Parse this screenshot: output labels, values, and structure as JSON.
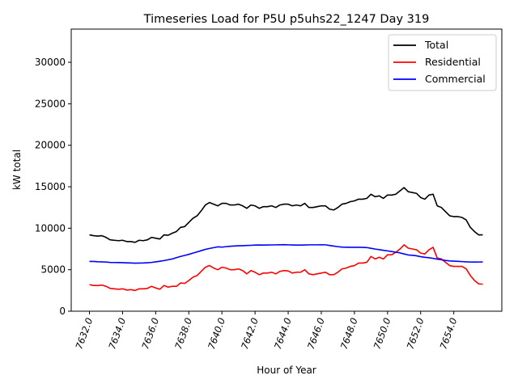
{
  "chart_data": {
    "type": "line",
    "title": "Timeseries Load for P5U p5uhs22_1247  Day 319",
    "xlabel": "Hour of Year",
    "ylabel": "kW total",
    "xlim": [
      7630.9,
      7656.9
    ],
    "ylim": [
      0,
      34000
    ],
    "xticks": [
      7632,
      7634,
      7636,
      7638,
      7640,
      7642,
      7644,
      7646,
      7648,
      7650,
      7652,
      7654
    ],
    "xtick_labels": [
      "7632.0",
      "7634.0",
      "7636.0",
      "7638.0",
      "7640.0",
      "7642.0",
      "7644.0",
      "7646.0",
      "7648.0",
      "7650.0",
      "7652.0",
      "7654.0"
    ],
    "yticks": [
      0,
      5000,
      10000,
      15000,
      20000,
      25000,
      30000
    ],
    "ytick_labels": [
      "0",
      "5000",
      "10000",
      "15000",
      "20000",
      "25000",
      "30000"
    ],
    "legend_position": "top-right",
    "x": [
      7632.0,
      7632.25,
      7632.5,
      7632.75,
      7633.0,
      7633.25,
      7633.5,
      7633.75,
      7634.0,
      7634.25,
      7634.5,
      7634.75,
      7635.0,
      7635.25,
      7635.5,
      7635.75,
      7636.0,
      7636.25,
      7636.5,
      7636.75,
      7637.0,
      7637.25,
      7637.5,
      7637.75,
      7638.0,
      7638.25,
      7638.5,
      7638.75,
      7639.0,
      7639.25,
      7639.5,
      7639.75,
      7640.0,
      7640.25,
      7640.5,
      7640.75,
      7641.0,
      7641.25,
      7641.5,
      7641.75,
      7642.0,
      7642.25,
      7642.5,
      7642.75,
      7643.0,
      7643.25,
      7643.5,
      7643.75,
      7644.0,
      7644.25,
      7644.5,
      7644.75,
      7645.0,
      7645.25,
      7645.5,
      7645.75,
      7646.0,
      7646.25,
      7646.5,
      7646.75,
      7647.0,
      7647.25,
      7647.5,
      7647.75,
      7648.0,
      7648.25,
      7648.5,
      7648.75,
      7649.0,
      7649.25,
      7649.5,
      7649.75,
      7650.0,
      7650.25,
      7650.5,
      7650.75,
      7651.0,
      7651.25,
      7651.5,
      7651.75,
      7652.0,
      7652.25,
      7652.5,
      7652.75,
      7653.0,
      7653.25,
      7653.5,
      7653.75,
      7654.0,
      7654.25,
      7654.5,
      7654.75,
      7655.0,
      7655.25,
      7655.5,
      7655.75
    ],
    "series": [
      {
        "name": "Total",
        "color": "#000000",
        "values": [
          9200,
          9100,
          9050,
          9100,
          8900,
          8600,
          8550,
          8500,
          8550,
          8400,
          8400,
          8300,
          8550,
          8500,
          8600,
          8900,
          8800,
          8700,
          9200,
          9150,
          9400,
          9600,
          10100,
          10200,
          10700,
          11200,
          11500,
          12100,
          12800,
          13100,
          12900,
          12700,
          13000,
          13000,
          12800,
          12800,
          12900,
          12700,
          12400,
          12800,
          12700,
          12400,
          12600,
          12600,
          12700,
          12500,
          12800,
          12900,
          12900,
          12700,
          12800,
          12700,
          13000,
          12500,
          12500,
          12600,
          12700,
          12700,
          12300,
          12200,
          12500,
          12900,
          13000,
          13200,
          13300,
          13500,
          13500,
          13600,
          14100,
          13800,
          13900,
          13600,
          14000,
          14000,
          14100,
          14500,
          14900,
          14400,
          14300,
          14200,
          13700,
          13500,
          14000,
          14100,
          12700,
          12500,
          12000,
          11500,
          11400,
          11400,
          11300,
          11000,
          10100,
          9600,
          9200,
          9200
        ]
      },
      {
        "name": "Residential",
        "color": "#ff0000",
        "values": [
          3200,
          3100,
          3100,
          3150,
          3000,
          2750,
          2700,
          2650,
          2700,
          2550,
          2600,
          2500,
          2700,
          2700,
          2750,
          3000,
          2800,
          2650,
          3100,
          2900,
          3000,
          3000,
          3400,
          3350,
          3700,
          4100,
          4300,
          4800,
          5300,
          5500,
          5200,
          5000,
          5300,
          5200,
          5000,
          5000,
          5100,
          4900,
          4500,
          4900,
          4700,
          4400,
          4600,
          4600,
          4700,
          4500,
          4800,
          4900,
          4850,
          4600,
          4700,
          4700,
          5000,
          4500,
          4400,
          4500,
          4600,
          4700,
          4400,
          4400,
          4700,
          5100,
          5200,
          5400,
          5500,
          5800,
          5800,
          5900,
          6600,
          6300,
          6500,
          6300,
          6800,
          6800,
          7100,
          7500,
          8000,
          7600,
          7500,
          7400,
          7000,
          6900,
          7400,
          7700,
          6400,
          6300,
          5900,
          5500,
          5400,
          5400,
          5400,
          5100,
          4300,
          3700,
          3300,
          3250
        ]
      },
      {
        "name": "Commercial",
        "color": "#0000ff",
        "values": [
          6000,
          6000,
          5960,
          5950,
          5920,
          5880,
          5870,
          5860,
          5850,
          5830,
          5810,
          5790,
          5800,
          5810,
          5840,
          5880,
          5950,
          6020,
          6100,
          6200,
          6300,
          6450,
          6600,
          6720,
          6850,
          7000,
          7150,
          7300,
          7450,
          7560,
          7660,
          7760,
          7720,
          7780,
          7820,
          7860,
          7880,
          7900,
          7920,
          7940,
          7970,
          7980,
          7970,
          7980,
          7990,
          8000,
          8010,
          8020,
          8000,
          7980,
          7970,
          7970,
          7980,
          8000,
          8000,
          8000,
          8010,
          8000,
          7920,
          7850,
          7780,
          7730,
          7710,
          7700,
          7700,
          7700,
          7690,
          7670,
          7580,
          7490,
          7420,
          7340,
          7270,
          7190,
          7110,
          7030,
          6900,
          6780,
          6740,
          6680,
          6570,
          6500,
          6450,
          6370,
          6280,
          6200,
          6120,
          6060,
          6030,
          6010,
          5980,
          5950,
          5930,
          5920,
          5930,
          5940
        ]
      }
    ]
  }
}
